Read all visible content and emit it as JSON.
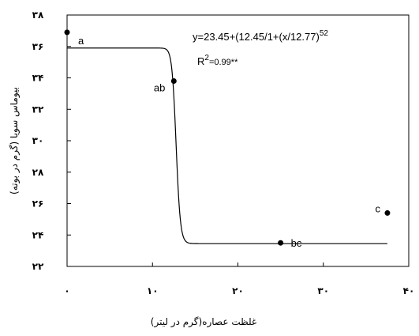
{
  "chart_data": {
    "type": "scatter",
    "xlabel": "غلظت عصاره(گرم در لیتر)",
    "ylabel": "بیوماس سویا (گرم در بوته)",
    "xlim": [
      0,
      40
    ],
    "ylim": [
      22,
      38
    ],
    "x_ticks": [
      0,
      10,
      20,
      30,
      40
    ],
    "y_ticks": [
      22,
      24,
      26,
      28,
      30,
      32,
      34,
      36,
      38
    ],
    "x_tick_labels": [
      "۰",
      "۱۰",
      "۲۰",
      "۳۰",
      "۴۰"
    ],
    "y_tick_labels": [
      "۲۲",
      "۲۴",
      "۲۶",
      "۲۸",
      "۳۰",
      "۳۲",
      "۳۴",
      "۳۶",
      "۳۸"
    ],
    "points": [
      {
        "x": 0,
        "y": 36.9,
        "label": "a"
      },
      {
        "x": 12.5,
        "y": 33.8,
        "label": "ab"
      },
      {
        "x": 25,
        "y": 23.5,
        "label": "bc"
      },
      {
        "x": 37.5,
        "y": 25.4,
        "label": "c"
      }
    ],
    "fit": {
      "type": "sigmoid",
      "base": 23.45,
      "amplitude": 12.45,
      "x50": 12.77,
      "slope": 52,
      "x_range": [
        0,
        37.5
      ]
    },
    "equation": {
      "main": "y=23.45+(12.45/1+(x/12.77)",
      "sup": "52"
    },
    "r2": {
      "pre": "R",
      "sup": "2",
      "post": "=0.99**"
    },
    "grid": false,
    "legend": "none"
  }
}
